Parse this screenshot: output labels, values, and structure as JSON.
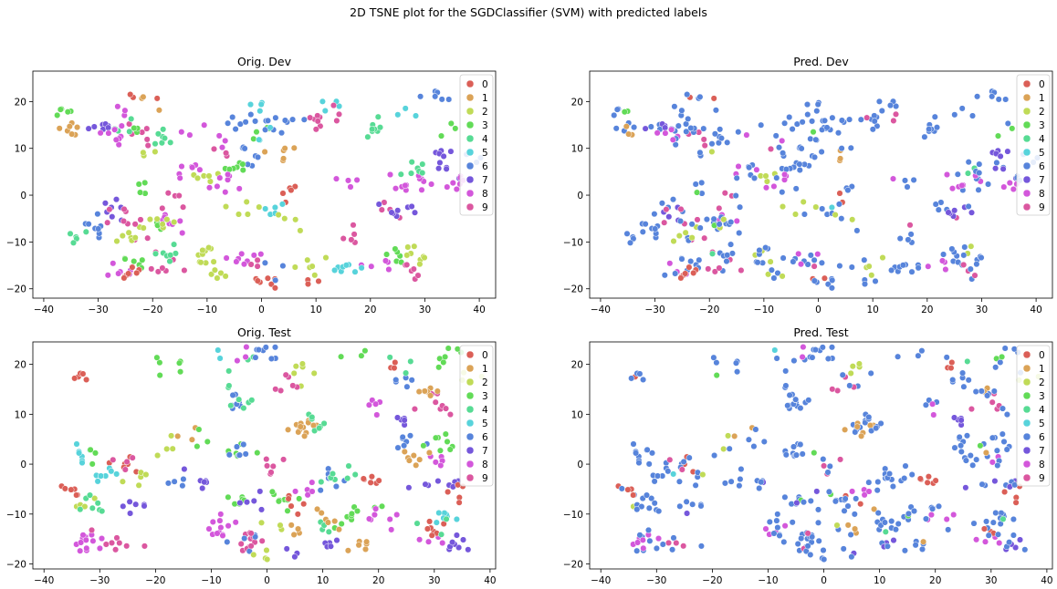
{
  "suptitle": "2D TSNE plot for the SGDClassifier (SVM) with predicted labels",
  "palette": [
    "#db5f57",
    "#dba357",
    "#c0db57",
    "#62db57",
    "#57db94",
    "#57d3db",
    "#5784db",
    "#7557db",
    "#d357db",
    "#db57a0"
  ],
  "chart_data": [
    {
      "type": "scatter",
      "title": "Orig. Dev",
      "xlim": [
        -42,
        43
      ],
      "ylim": [
        -22,
        26.5
      ],
      "xticks": [
        -40,
        -30,
        -20,
        -10,
        0,
        10,
        20,
        30,
        40
      ],
      "yticks": [
        -20,
        -10,
        0,
        10,
        20
      ],
      "legend": [
        "0",
        "1",
        "2",
        "3",
        "4",
        "5",
        "6",
        "7",
        "8",
        "9"
      ],
      "legend_position": "top-right",
      "grid": false,
      "labeling": "original",
      "seed": 101
    },
    {
      "type": "scatter",
      "title": "Pred. Dev",
      "xlim": [
        -42,
        43
      ],
      "ylim": [
        -22,
        26.5
      ],
      "xticks": [
        -40,
        -30,
        -20,
        -10,
        0,
        10,
        20,
        30,
        40
      ],
      "yticks": [
        -20,
        -10,
        0,
        10,
        20
      ],
      "legend": [
        "0",
        "1",
        "2",
        "3",
        "4",
        "5",
        "6",
        "7",
        "8",
        "9"
      ],
      "legend_position": "top-right",
      "grid": false,
      "labeling": "predicted",
      "seed": 101
    },
    {
      "type": "scatter",
      "title": "Orig. Test",
      "xlim": [
        -42,
        41
      ],
      "ylim": [
        -21,
        24.5
      ],
      "xticks": [
        -40,
        -30,
        -20,
        -10,
        0,
        10,
        20,
        30,
        40
      ],
      "yticks": [
        -20,
        -10,
        0,
        10,
        20
      ],
      "legend": [
        "0",
        "1",
        "2",
        "3",
        "4",
        "5",
        "6",
        "7",
        "8",
        "9"
      ],
      "legend_position": "top-right",
      "grid": false,
      "labeling": "original",
      "seed": 202
    },
    {
      "type": "scatter",
      "title": "Pred. Test",
      "xlim": [
        -42,
        41
      ],
      "ylim": [
        -21,
        24.5
      ],
      "xticks": [
        -40,
        -30,
        -20,
        -10,
        0,
        10,
        20,
        30,
        40
      ],
      "yticks": [
        -20,
        -10,
        0,
        10,
        20
      ],
      "legend": [
        "0",
        "1",
        "2",
        "3",
        "4",
        "5",
        "6",
        "7",
        "8",
        "9"
      ],
      "legend_position": "top-right",
      "grid": false,
      "labeling": "predicted",
      "seed": 202
    }
  ]
}
